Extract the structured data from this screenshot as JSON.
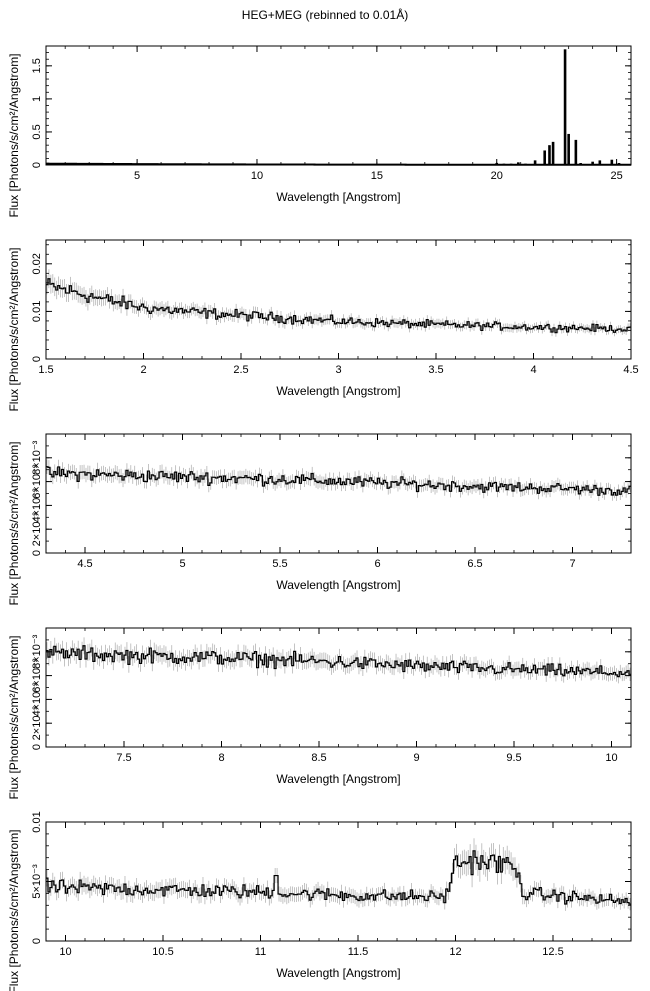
{
  "figure": {
    "title": "HEG+MEG (rebinned to 0.01Å)"
  },
  "chart_data": [
    {
      "type": "line",
      "xlabel": "Wavelength [Angstrom]",
      "ylabel": "Flux [Photons/s/cm²/Angstrom]",
      "xlim": [
        1.2,
        25.6
      ],
      "ylim": [
        0,
        1.8
      ],
      "xticks": [
        {
          "v": 5,
          "label": "5"
        },
        {
          "v": 10,
          "label": "10"
        },
        {
          "v": 15,
          "label": "15"
        },
        {
          "v": 20,
          "label": "20"
        },
        {
          "v": 25,
          "label": "25"
        }
      ],
      "yticks": [
        {
          "v": 0,
          "label": "0"
        },
        {
          "v": 0.5,
          "label": "0.5"
        },
        {
          "v": 1,
          "label": "1"
        },
        {
          "v": 1.5,
          "label": "1.5"
        }
      ],
      "yminor_step": 0.1,
      "baseline": [
        [
          1.2,
          0.02
        ],
        [
          6,
          0.012
        ],
        [
          10,
          0.008
        ],
        [
          15,
          0.005
        ],
        [
          20,
          0.004
        ],
        [
          25.6,
          0.003
        ]
      ],
      "lines": [
        [
          20.0,
          0.03
        ],
        [
          20.3,
          0.02
        ],
        [
          20.6,
          0.02
        ],
        [
          20.9,
          0.04
        ],
        [
          21.2,
          0.02
        ],
        [
          21.6,
          0.07
        ],
        [
          22.0,
          0.22
        ],
        [
          22.2,
          0.3
        ],
        [
          22.35,
          0.35
        ],
        [
          22.85,
          1.75
        ],
        [
          23.0,
          0.47
        ],
        [
          23.3,
          0.38
        ],
        [
          23.5,
          0.03
        ],
        [
          24.0,
          0.05
        ],
        [
          24.3,
          0.07
        ],
        [
          24.8,
          0.08
        ],
        [
          25.1,
          0.03
        ]
      ]
    },
    {
      "type": "line",
      "xlabel": "Wavelength [Angstrom]",
      "ylabel": "Flux [Photons/s/cm²/Angstrom]",
      "xlim": [
        1.5,
        4.5
      ],
      "ylim": [
        0,
        0.025
      ],
      "xticks": [
        {
          "v": 1.5,
          "label": "1.5"
        },
        {
          "v": 2,
          "label": "2"
        },
        {
          "v": 2.5,
          "label": "2.5"
        },
        {
          "v": 3,
          "label": "3"
        },
        {
          "v": 3.5,
          "label": "3.5"
        },
        {
          "v": 4,
          "label": "4"
        },
        {
          "v": 4.5,
          "label": "4.5"
        }
      ],
      "yticks": [
        {
          "v": 0,
          "label": "0"
        },
        {
          "v": 0.01,
          "label": "0.01"
        },
        {
          "v": 0.02,
          "label": "0.02"
        }
      ],
      "yminor_step": 0.002,
      "trend": [
        [
          1.5,
          0.0155
        ],
        [
          1.6,
          0.0145
        ],
        [
          1.8,
          0.0125
        ],
        [
          2.0,
          0.0108
        ],
        [
          2.3,
          0.0097
        ],
        [
          2.6,
          0.0089
        ],
        [
          3.0,
          0.0079
        ],
        [
          3.5,
          0.0072
        ],
        [
          4.0,
          0.0067
        ],
        [
          4.5,
          0.0063
        ]
      ],
      "scatter_rel": 0.1
    },
    {
      "type": "line",
      "xlabel": "Wavelength [Angstrom]",
      "ylabel": "Flux [Photons/s/cm²/Angstrom]",
      "xlim": [
        4.3,
        7.3
      ],
      "ylim": [
        0,
        0.01
      ],
      "xticks": [
        {
          "v": 4.5,
          "label": "4.5"
        },
        {
          "v": 5,
          "label": "5"
        },
        {
          "v": 5.5,
          "label": "5.5"
        },
        {
          "v": 6,
          "label": "6"
        },
        {
          "v": 6.5,
          "label": "6.5"
        },
        {
          "v": 7,
          "label": "7"
        }
      ],
      "yticks": [
        {
          "v": 0,
          "label": "0"
        },
        {
          "v": 0.002,
          "label": "2×10⁻³"
        },
        {
          "v": 0.004,
          "label": "4×10⁻³"
        },
        {
          "v": 0.006,
          "label": "6×10⁻³"
        },
        {
          "v": 0.008,
          "label": "8×10⁻³"
        }
      ],
      "yminor_step": 0.001,
      "trend": [
        [
          4.3,
          0.0067
        ],
        [
          5.0,
          0.0064
        ],
        [
          5.5,
          0.0062
        ],
        [
          6.0,
          0.0059
        ],
        [
          6.5,
          0.0056
        ],
        [
          7.0,
          0.0054
        ],
        [
          7.3,
          0.0052
        ]
      ],
      "scatter_rel": 0.07
    },
    {
      "type": "line",
      "xlabel": "Wavelength [Angstrom]",
      "ylabel": "Flux [Photons/s/cm²/Angstrom]",
      "xlim": [
        7.1,
        10.1
      ],
      "ylim": [
        0,
        0.01
      ],
      "xticks": [
        {
          "v": 7.5,
          "label": "7.5"
        },
        {
          "v": 8,
          "label": "8"
        },
        {
          "v": 8.5,
          "label": "8.5"
        },
        {
          "v": 9,
          "label": "9"
        },
        {
          "v": 9.5,
          "label": "9.5"
        },
        {
          "v": 10,
          "label": "10"
        }
      ],
      "yticks": [
        {
          "v": 0,
          "label": "0"
        },
        {
          "v": 0.002,
          "label": "2×10⁻³"
        },
        {
          "v": 0.004,
          "label": "4×10⁻³"
        },
        {
          "v": 0.006,
          "label": "6×10⁻³"
        },
        {
          "v": 0.008,
          "label": "8×10⁻³"
        }
      ],
      "yminor_step": 0.001,
      "trend": [
        [
          7.1,
          0.0079
        ],
        [
          7.5,
          0.0077
        ],
        [
          8.0,
          0.0075
        ],
        [
          8.5,
          0.0072
        ],
        [
          9.0,
          0.0068
        ],
        [
          9.5,
          0.0065
        ],
        [
          10.1,
          0.0062
        ]
      ],
      "scatter_rel": 0.07
    },
    {
      "type": "line",
      "xlabel": "Wavelength [Angstrom]",
      "ylabel": "Flux [Photons/s/cm²/Angstrom]",
      "xlim": [
        9.9,
        12.9
      ],
      "ylim": [
        0,
        0.01
      ],
      "xticks": [
        {
          "v": 10,
          "label": "10"
        },
        {
          "v": 10.5,
          "label": "10.5"
        },
        {
          "v": 11,
          "label": "11"
        },
        {
          "v": 11.5,
          "label": "11.5"
        },
        {
          "v": 12,
          "label": "12"
        },
        {
          "v": 12.5,
          "label": "12.5"
        }
      ],
      "yticks": [
        {
          "v": 0,
          "label": "0"
        },
        {
          "v": 0.005,
          "label": "5×10⁻³"
        },
        {
          "v": 0.01,
          "label": "0.01"
        }
      ],
      "yminor_step": 0.001,
      "trend": [
        [
          9.9,
          0.0045
        ],
        [
          10.5,
          0.0043
        ],
        [
          11.0,
          0.0041
        ],
        [
          11.5,
          0.0038
        ],
        [
          11.95,
          0.0037
        ],
        [
          12.0,
          0.0065
        ],
        [
          12.1,
          0.0068
        ],
        [
          12.3,
          0.0063
        ],
        [
          12.35,
          0.004
        ],
        [
          12.9,
          0.0033
        ]
      ],
      "scatter_rel": 0.12,
      "spikes": [
        [
          11.08,
          0.0055
        ]
      ]
    }
  ]
}
